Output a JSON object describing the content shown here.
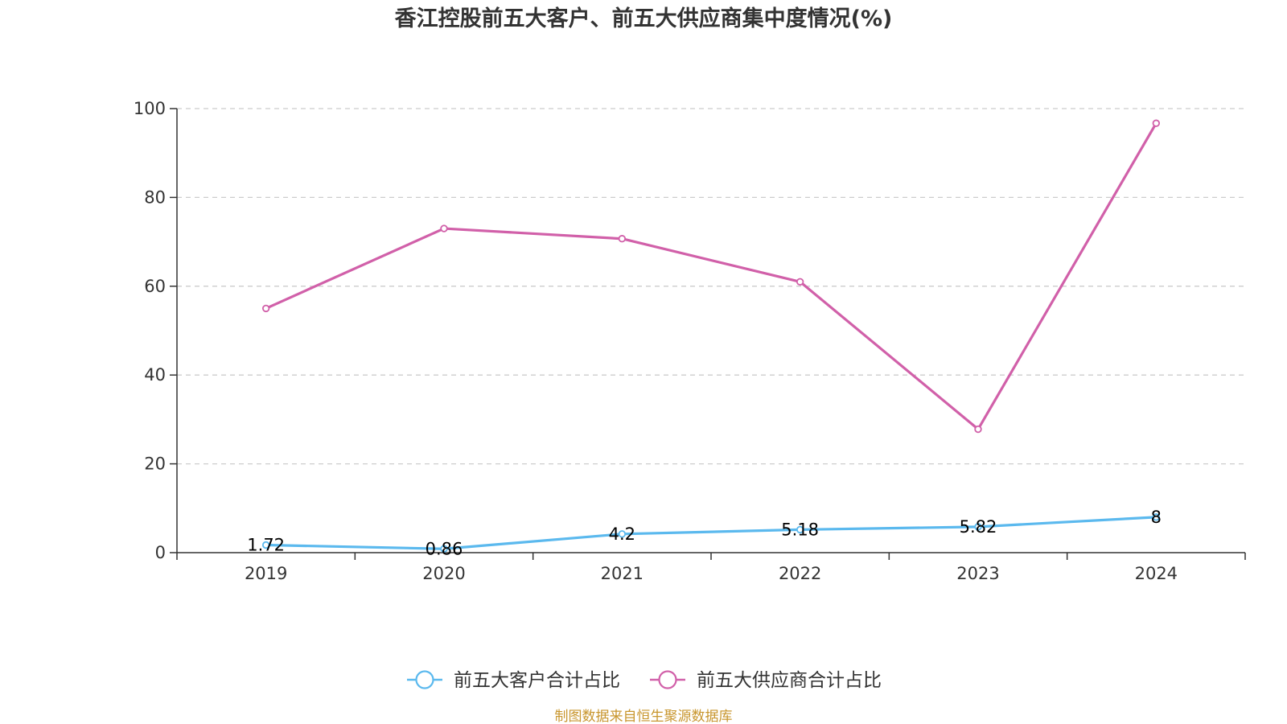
{
  "chart_data": {
    "type": "line",
    "title": "香江控股前五大客户、前五大供应商集中度情况(%)",
    "x": [
      "2019",
      "2020",
      "2021",
      "2022",
      "2023",
      "2024"
    ],
    "ylim": [
      0,
      100
    ],
    "yticks": [
      "0",
      "20",
      "40",
      "60",
      "80",
      "100"
    ],
    "grid": true,
    "legend_position": "bottom-center",
    "series": [
      {
        "name": "前五大客户合计占比",
        "values": [
          1.72,
          0.86,
          4.2,
          5.18,
          5.82,
          8
        ],
        "labels": [
          "1.72",
          "0.86",
          "4.2",
          "5.18",
          "5.82",
          "8"
        ],
        "color": "#5BB9EE",
        "show_labels": true
      },
      {
        "name": "前五大供应商合计占比",
        "values": [
          55.0,
          73.0,
          70.7,
          61.0,
          27.8,
          96.7
        ],
        "color": "#D160A9",
        "show_labels": false
      }
    ],
    "source": "制图数据来自恒生聚源数据库"
  },
  "colors": {
    "axis": "#333333",
    "grid": "#CCCCCC",
    "source": "#C8962E"
  }
}
